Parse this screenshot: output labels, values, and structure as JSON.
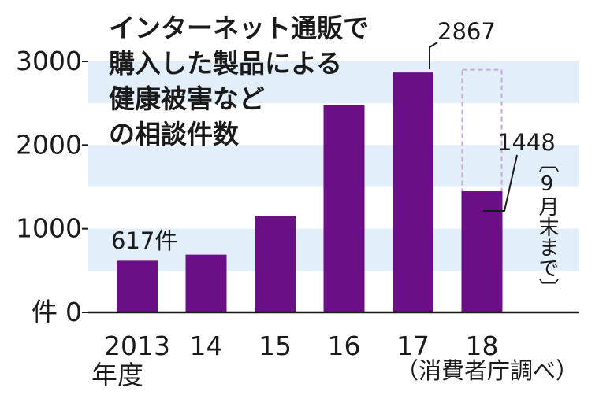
{
  "chart_data": {
    "type": "bar",
    "title_lines": [
      "インターネット通販で",
      "購入した製品による",
      "健康被害など",
      "の相談件数"
    ],
    "categories": [
      "2013",
      "14",
      "15",
      "16",
      "17",
      "18"
    ],
    "x_unit": "年度",
    "values": [
      617,
      690,
      1150,
      2480,
      2867,
      1448
    ],
    "projection_box_value": 2900,
    "ylim": [
      0,
      3000
    ],
    "yticks": [
      0,
      1000,
      2000,
      3000
    ],
    "ylabel": "件",
    "grid": "alternating light-blue bands every 500",
    "data_labels": {
      "first": "617件",
      "peak": "2867",
      "last": "1448"
    },
    "last_note": "〔9月末まで〕",
    "source": "（消費者庁調べ）"
  },
  "colors": {
    "bar": "#6a0f85",
    "band": "#e2eef9",
    "dashed": "#c9a6e0",
    "text": "#1a1a1a"
  }
}
